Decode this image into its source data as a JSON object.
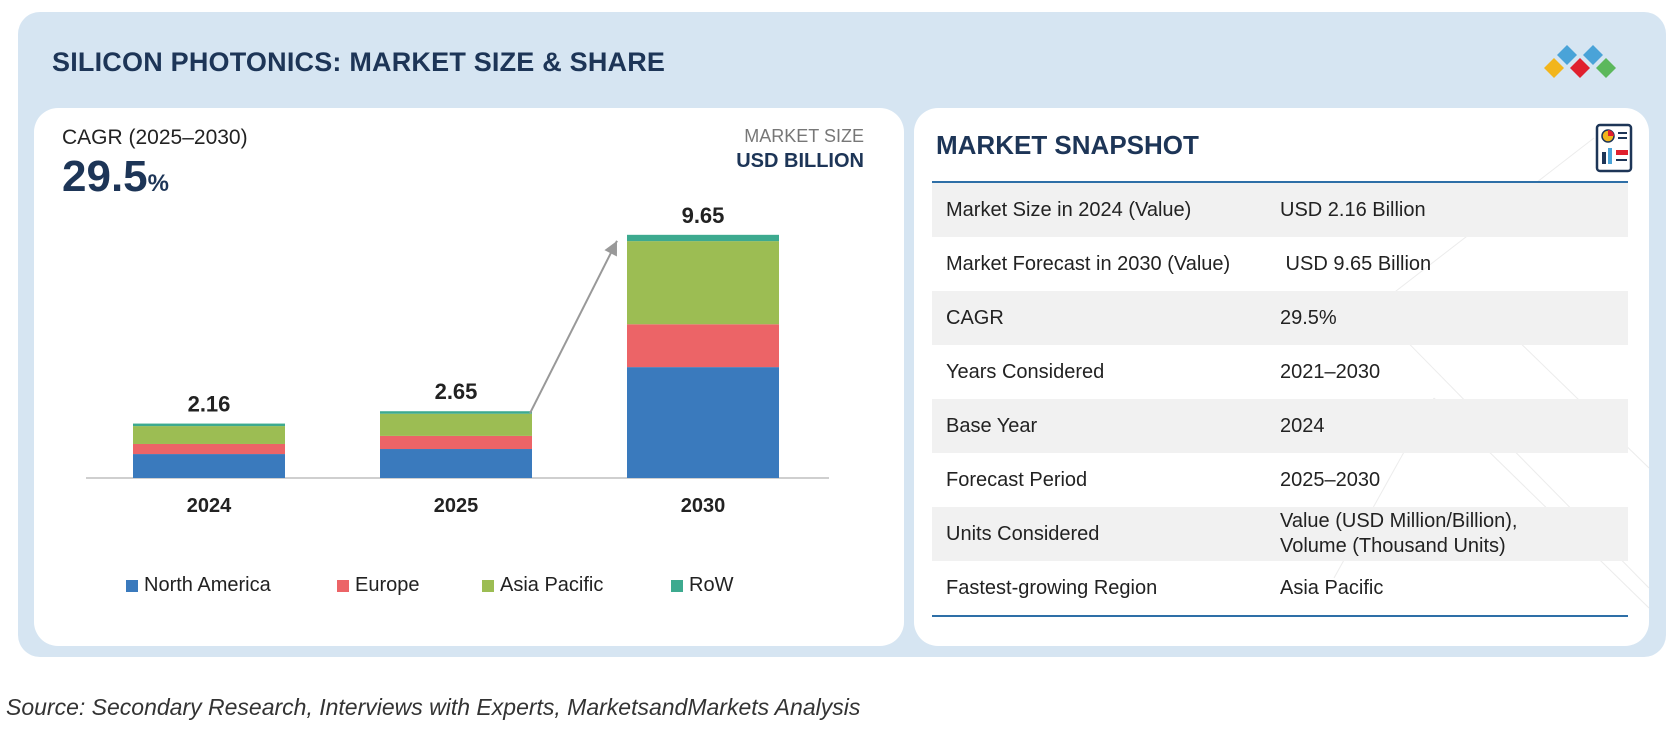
{
  "header": {
    "title": "SILICON PHOTONICS: MARKET SIZE & SHARE"
  },
  "logo": {
    "icon": "diamond-cluster-logo-icon",
    "colors": [
      "#f2b51c",
      "#e0202e",
      "#4aa3d8",
      "#5cb85c"
    ]
  },
  "chart_panel": {
    "cagr_label": "CAGR (2025–2030)",
    "cagr_value": "29.5",
    "cagr_unit": "%",
    "market_size_label": "MARKET SIZE",
    "market_size_unit": "USD BILLION"
  },
  "chart_data": {
    "type": "bar",
    "stacked": true,
    "title": "SILICON PHOTONICS: MARKET SIZE & SHARE",
    "ylabel": "USD BILLION",
    "categories": [
      "2024",
      "2025",
      "2030"
    ],
    "totals": [
      "2.16",
      "2.65",
      "9.65"
    ],
    "total_values": [
      2.16,
      2.65,
      9.65
    ],
    "series": [
      {
        "name": "North America",
        "color": "#3a7abd",
        "values": [
          0.95,
          1.15,
          4.4
        ]
      },
      {
        "name": "Europe",
        "color": "#ec6467",
        "values": [
          0.4,
          0.52,
          1.7
        ]
      },
      {
        "name": "Asia Pacific",
        "color": "#9cbd53",
        "values": [
          0.71,
          0.88,
          3.3
        ]
      },
      {
        "name": "RoW",
        "color": "#3daa8f",
        "values": [
          0.1,
          0.1,
          0.25
        ]
      }
    ],
    "ylim": [
      0,
      10
    ],
    "legend_position": "bottom",
    "annotation": "growth arrow from 2025 bar to 2030 bar"
  },
  "snapshot": {
    "title": "MARKET SNAPSHOT",
    "icon": "report-document-icon",
    "rows": [
      {
        "key": "Market Size in 2024 (Value)",
        "value": "USD 2.16 Billion"
      },
      {
        "key": "Market Forecast in 2030 (Value)",
        "value": " USD 9.65 Billion"
      },
      {
        "key": "CAGR",
        "value": "29.5%"
      },
      {
        "key": "Years Considered",
        "value": "2021–2030"
      },
      {
        "key": "Base Year",
        "value": "2024"
      },
      {
        "key": "Forecast Period",
        "value": "2025–2030"
      },
      {
        "key": "Units Considered",
        "value": "Value (USD Million/Billion),",
        "value2": "Volume (Thousand Units)"
      },
      {
        "key": "Fastest-growing Region",
        "value": "Asia Pacific"
      }
    ]
  },
  "footer": {
    "source": "Source: Secondary Research, Interviews with Experts, MarketsandMarkets Analysis"
  }
}
